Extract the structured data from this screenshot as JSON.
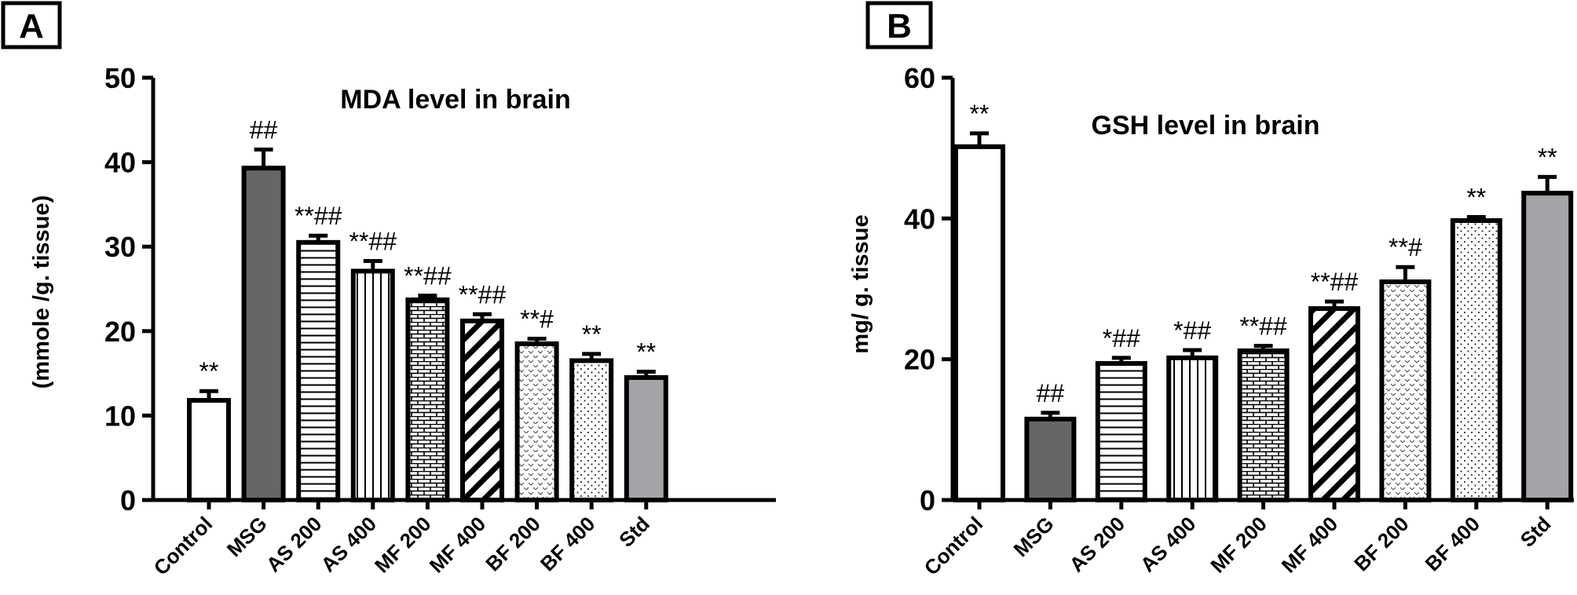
{
  "chart_data": [
    {
      "panel_label": "A",
      "type": "bar",
      "title": "MDA level in brain",
      "ylabel": "(mmole /g. tissue)",
      "xlabel": "",
      "ylim": [
        0,
        50
      ],
      "yticks": [
        "0",
        "10",
        "20",
        "30",
        "40",
        "50"
      ],
      "categories": [
        "Control",
        "MSG",
        "AS 200",
        "AS 400",
        "MF 200",
        "MF 400",
        "BF 200",
        "BF 400",
        "Std"
      ],
      "values": [
        11.8,
        39.3,
        30.5,
        27.1,
        23.7,
        21.2,
        18.5,
        16.5,
        14.5
      ],
      "errors": [
        1.1,
        2.2,
        0.8,
        1.2,
        0.5,
        0.8,
        0.6,
        0.8,
        0.7
      ],
      "annotations": [
        "**",
        "##",
        "**##",
        "**##",
        "**##",
        "**##",
        "**#",
        "**",
        "**"
      ],
      "patterns": [
        "white",
        "dark-gray",
        "horizontal-lines",
        "vertical-lines",
        "brick",
        "diagonal-stripes",
        "chevron-dots",
        "fine-dots",
        "light-gray"
      ]
    },
    {
      "panel_label": "B",
      "type": "bar",
      "title": "GSH level in brain",
      "ylabel": "mg/ g. tissue",
      "xlabel": "",
      "ylim": [
        0,
        60
      ],
      "yticks": [
        "0",
        "20",
        "40",
        "60"
      ],
      "categories": [
        "Control",
        "MSG",
        "AS 200",
        "AS 400",
        "MF 200",
        "MF 400",
        "BF 200",
        "BF 400",
        "Std"
      ],
      "values": [
        50.2,
        11.5,
        19.4,
        20.2,
        21.2,
        27.2,
        31.0,
        39.7,
        43.6
      ],
      "errors": [
        1.9,
        0.9,
        0.8,
        1.1,
        0.7,
        1.0,
        2.1,
        0.5,
        2.3
      ],
      "annotations": [
        "**",
        "##",
        "*##",
        "*##",
        "**##",
        "**##",
        "**#",
        "**",
        "**"
      ],
      "patterns": [
        "white",
        "dark-gray",
        "horizontal-lines",
        "vertical-lines",
        "brick",
        "diagonal-stripes",
        "chevron-dots",
        "fine-dots",
        "light-gray"
      ]
    }
  ]
}
